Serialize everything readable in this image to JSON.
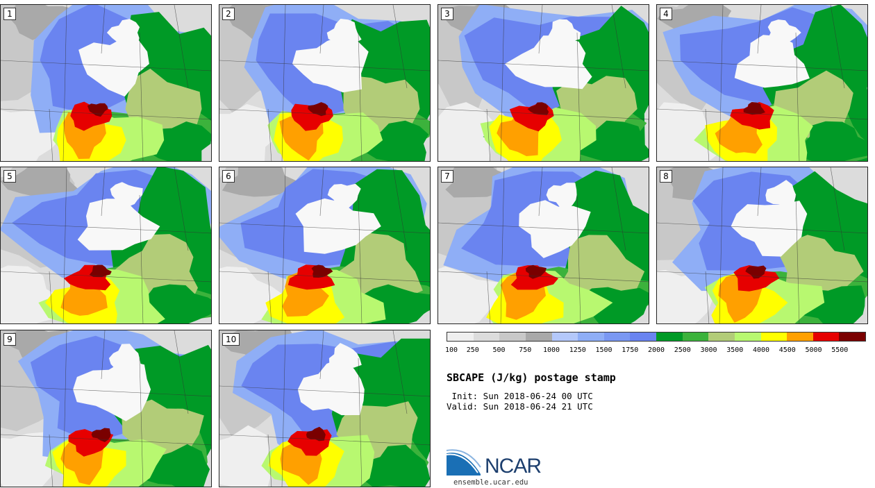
{
  "figure": {
    "title": "SBCAPE (J/kg) postage stamp",
    "init": " Init: Sun 2018-06-24 00 UTC",
    "valid": "Valid: Sun 2018-06-24 21 UTC"
  },
  "members": [
    "1",
    "2",
    "3",
    "4",
    "5",
    "6",
    "7",
    "8",
    "9",
    "10"
  ],
  "colorbar": {
    "colors": [
      "#efefef",
      "#dcdcdc",
      "#c8c8c8",
      "#a9a9a9",
      "#b4c8fa",
      "#8faef6",
      "#7a98f2",
      "#6a84f0",
      "#009a26",
      "#3cb23c",
      "#b2cc78",
      "#b8f870",
      "#ffff00",
      "#ffa000",
      "#e60000",
      "#7a0000"
    ],
    "labels": [
      "100",
      "250",
      "500",
      "750",
      "1000",
      "1250",
      "1500",
      "1750",
      "2000",
      "2500",
      "3000",
      "3500",
      "4000",
      "4500",
      "5000",
      "5500"
    ]
  },
  "logo": {
    "name": "NCAR",
    "url": "ensemble.ucar.edu",
    "color": "#1d3f6e",
    "swoosh_color": "#1a6fb5"
  }
}
